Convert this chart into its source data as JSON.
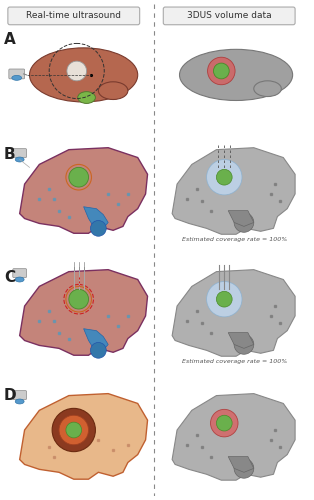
{
  "title_left": "Real-time ultrasound",
  "title_right": "3DUS volume data",
  "labels": [
    "A",
    "B",
    "C",
    "D"
  ],
  "text_b_right": "Estimated coverage rate = 100%",
  "text_c_right": "Estimated coverage rate = 100%",
  "bg_color": "#ffffff",
  "liver_color_top": "#b5674f",
  "liver_color_mid": "#c47b6e",
  "liver_color_dark": "#8b4a3e",
  "liver_gray": "#a0a0a0",
  "liver_gray_dark": "#888888",
  "tumor_green": "#6ab04c",
  "tumor_orange": "#e07b50",
  "ablation_white": "#e8e8e8",
  "ablation_blue": "#a8c8e8",
  "margin_red": "#cc4444",
  "vessel_blue": "#4488aa",
  "dashed_line_color": "#555555",
  "title_box_color": "#f0f0f0",
  "title_border_color": "#aaaaaa"
}
